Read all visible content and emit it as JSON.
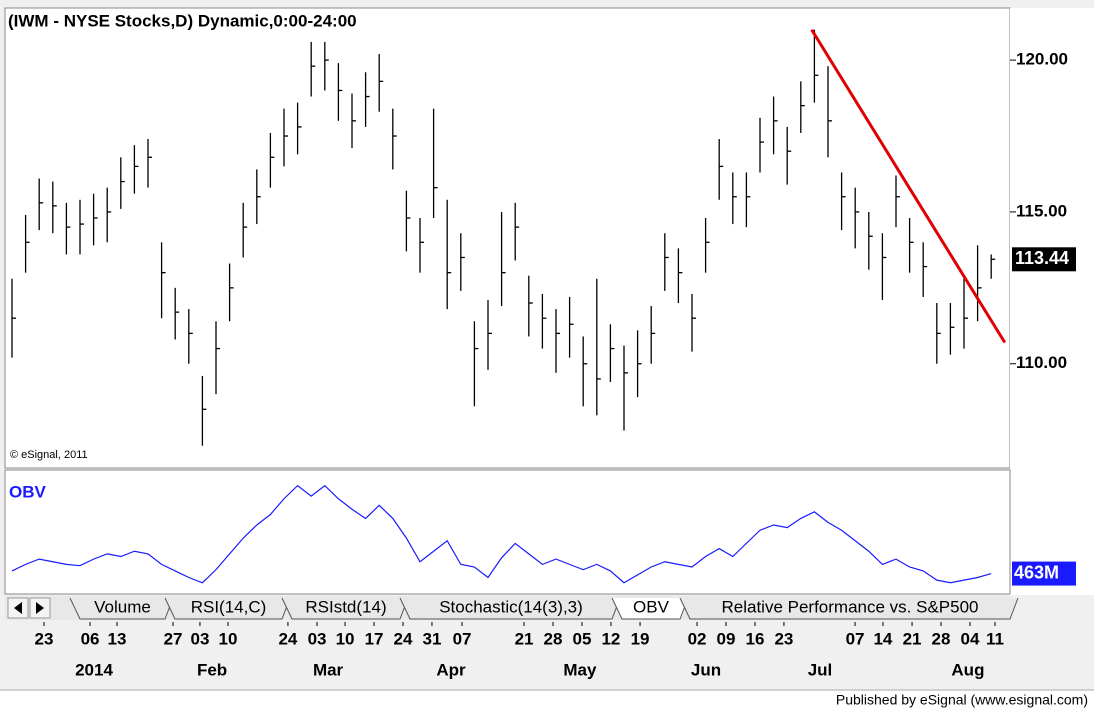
{
  "title": "(IWM - NYSE Stocks,D) Dynamic,0:00-24:00",
  "copyright": "© eSignal, 2011",
  "footer": "Published by eSignal (www.esignal.com)",
  "tabs": [
    "Volume",
    "RSI(14,C)",
    "RSIstd(14)",
    "Stochastic(14(3),3)",
    "OBV",
    "Relative Performance vs. S&P500"
  ],
  "active_tab": 4,
  "chart_data": [
    {
      "type": "ohlc",
      "color": "#000000",
      "high": [
        112.8,
        114.9,
        116.1,
        116,
        115.3,
        115.4,
        115.6,
        115.8,
        116.8,
        117.2,
        117.4,
        114,
        112.5,
        111.8,
        109.6,
        111.4,
        113.3,
        115.3,
        116.4,
        117.6,
        118.4,
        118.6,
        120.6,
        120.6,
        119.9,
        118.9,
        119.6,
        120.2,
        118.4,
        115.7,
        114.8,
        118.4,
        115.4,
        114.3,
        111.4,
        112.1,
        115,
        115.3,
        112.9,
        112.3,
        111.8,
        112.2,
        110.9,
        112.8,
        111.3,
        110.6,
        111.1,
        111.9,
        114.3,
        113.8,
        112.3,
        114.8,
        117.4,
        116.3,
        116.3,
        118.1,
        118.8,
        117.8,
        119.3,
        121,
        119.8,
        116.3,
        115.8,
        115,
        114.3,
        116.2,
        114.8,
        114,
        112,
        112,
        112.8,
        113.9,
        113.6
      ],
      "low": [
        110.2,
        113,
        114.4,
        114.3,
        113.6,
        113.6,
        113.9,
        114,
        115.1,
        115.6,
        115.8,
        111.5,
        110.8,
        110,
        107.3,
        109,
        111.4,
        113.5,
        114.6,
        115.8,
        116.5,
        116.9,
        118.8,
        119,
        118,
        117.1,
        117.8,
        118.3,
        116.4,
        113.7,
        113,
        114.8,
        111.8,
        112.4,
        108.6,
        109.8,
        111.9,
        113.4,
        110.9,
        110.5,
        109.7,
        110.2,
        108.6,
        108.3,
        109.4,
        107.8,
        108.9,
        110,
        112.4,
        112,
        110.4,
        113,
        115.4,
        114.6,
        114.5,
        116.3,
        116.9,
        115.9,
        117.6,
        118.6,
        116.8,
        114.4,
        113.8,
        113.1,
        112.1,
        114.5,
        113,
        112.2,
        110,
        110.3,
        110.5,
        111.4,
        112.8
      ],
      "close": [
        111.5,
        114,
        115.3,
        115.2,
        114.5,
        114.6,
        114.8,
        115,
        116,
        116.5,
        116.8,
        113,
        111.7,
        111,
        108.5,
        110.5,
        112.5,
        114.5,
        115.5,
        116.8,
        117.5,
        117.8,
        119.8,
        120,
        119,
        118,
        118.8,
        119.3,
        117.5,
        114.8,
        114,
        115.8,
        113,
        113.5,
        110.5,
        111,
        113,
        114.5,
        112,
        111.5,
        111,
        111.3,
        110,
        109.5,
        110.5,
        109.7,
        110,
        111,
        113.5,
        113,
        111.5,
        114,
        116.5,
        115.5,
        115.5,
        117.3,
        118,
        117,
        118.5,
        119.5,
        118,
        115.5,
        115,
        114.2,
        113.5,
        115.5,
        114,
        113.2,
        111,
        111.2,
        111.5,
        112.5,
        113.44
      ],
      "ylim": [
        106.6,
        121.65
      ],
      "yticks": [
        {
          "value": 110,
          "label": "110.00"
        },
        {
          "value": 115,
          "label": "115.00"
        },
        {
          "value": 120,
          "label": "120.00"
        }
      ],
      "xticks": [
        {
          "value": 2.35,
          "label": "23"
        },
        {
          "value": 5.74,
          "label": "06"
        },
        {
          "value": 7.72,
          "label": "13"
        },
        {
          "value": 11.84,
          "label": "27"
        },
        {
          "value": 13.82,
          "label": "03"
        },
        {
          "value": 15.88,
          "label": "10"
        },
        {
          "value": 20.29,
          "label": "24"
        },
        {
          "value": 22.43,
          "label": "03"
        },
        {
          "value": 24.49,
          "label": "10"
        },
        {
          "value": 26.62,
          "label": "17"
        },
        {
          "value": 28.75,
          "label": "24"
        },
        {
          "value": 30.88,
          "label": "31"
        },
        {
          "value": 33.09,
          "label": "07"
        },
        {
          "value": 37.65,
          "label": "21"
        },
        {
          "value": 39.78,
          "label": "28"
        },
        {
          "value": 41.91,
          "label": "05"
        },
        {
          "value": 44.04,
          "label": "12"
        },
        {
          "value": 46.18,
          "label": "19"
        },
        {
          "value": 50.37,
          "label": "02"
        },
        {
          "value": 52.5,
          "label": "09"
        },
        {
          "value": 54.63,
          "label": "16"
        },
        {
          "value": 56.76,
          "label": "23"
        },
        {
          "value": 61.99,
          "label": "07"
        },
        {
          "value": 64.04,
          "label": "14"
        },
        {
          "value": 66.18,
          "label": "21"
        },
        {
          "value": 68.31,
          "label": "28"
        },
        {
          "value": 70.44,
          "label": "04"
        },
        {
          "value": 72.28,
          "label": "11"
        }
      ],
      "month_ticks": [
        {
          "value": 6.03,
          "label": "2014"
        },
        {
          "value": 14.71,
          "label": "Feb"
        },
        {
          "value": 23.24,
          "label": "Mar"
        },
        {
          "value": 32.28,
          "label": "Apr"
        },
        {
          "value": 41.76,
          "label": "May"
        },
        {
          "value": 51.03,
          "label": "Jun"
        },
        {
          "value": 59.41,
          "label": "Jul"
        },
        {
          "value": 70.29,
          "label": "Aug"
        }
      ],
      "trendline": {
        "x": [
          58.8,
          73
        ],
        "y": [
          121.0,
          110.7
        ],
        "color": "#e00000"
      }
    },
    {
      "type": "line",
      "title": "OBV",
      "color": "#1a1aff",
      "values": [
        465,
        470,
        474,
        472,
        470,
        469,
        474,
        478,
        476,
        480,
        478,
        470,
        465,
        460,
        456,
        466,
        478,
        490,
        500,
        508,
        520,
        530,
        522,
        530,
        520,
        512,
        505,
        515,
        505,
        490,
        472,
        480,
        488,
        470,
        468,
        460,
        475,
        486,
        478,
        470,
        474,
        470,
        466,
        470,
        465,
        456,
        462,
        468,
        472,
        470,
        468,
        476,
        482,
        476,
        486,
        496,
        500,
        498,
        505,
        510,
        502,
        496,
        488,
        480,
        470,
        474,
        468,
        465,
        458,
        456,
        458,
        460,
        463
      ],
      "last_label": "463M",
      "ylim": [
        452,
        532
      ]
    }
  ]
}
